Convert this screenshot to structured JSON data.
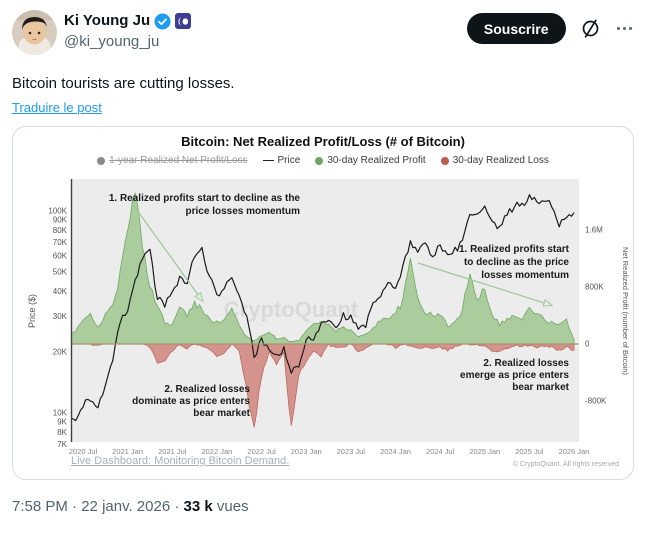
{
  "post": {
    "author": {
      "name": "Ki Young Ju",
      "handle": "@ki_young_ju"
    },
    "icons": {
      "verified": "verified-check",
      "affiliation": "cryptoquant-square-badge",
      "grok": "slashed-circle",
      "more": "ellipsis"
    },
    "subscribe_label": "Souscrire",
    "body": "Bitcoin tourists are cutting losses.",
    "translate_label": "Traduire le post",
    "meta": {
      "time": "7:58 PM",
      "date": "22 janv. 2026",
      "views_value": "33 k",
      "views_label": "vues",
      "separator": "·"
    }
  },
  "chart_data": {
    "type": "line+area",
    "title": "Bitcoin: Net Realized Profit/Loss (# of Bitcoin)",
    "watermark": "CryptoQuant",
    "footer_link": "Live Dashboard: Monitoring Bitcoin Demand.",
    "copyright": "© CryptoQuant. All rights reserved",
    "legend": [
      {
        "label": "1-year Realized Net Profit/Loss",
        "marker": "dot",
        "color": "#8a8a8a",
        "disabled": true
      },
      {
        "label": "Price",
        "marker": "line",
        "color": "#222222",
        "disabled": false
      },
      {
        "label": "30-day Realized Profit",
        "marker": "dot",
        "color": "#6fa763",
        "disabled": false
      },
      {
        "label": "30-day Realized Loss",
        "marker": "dot",
        "color": "#c05b52",
        "disabled": false
      }
    ],
    "x_start_month": "2020-05",
    "x_step_months": 1,
    "x_tick_labels": [
      "2020 Jul",
      "2021 Jan",
      "2021 Jul",
      "2022 Jan",
      "2022 Jul",
      "2023 Jan",
      "2023 Jul",
      "2024 Jan",
      "2024 Jul",
      "2025 Jan",
      "2025 Jul",
      "2026 Jan"
    ],
    "left_axis": {
      "label": "Price ($)",
      "scale": "log",
      "tick_labels": [
        "100K",
        "90K",
        "80K",
        "70K",
        "60K",
        "50K",
        "40K",
        "30K",
        "20K",
        "10K",
        "9K",
        "8K",
        "7K"
      ]
    },
    "right_axis": {
      "label": "Net Realized Profit (number of Bitcoin)",
      "scale": "linear",
      "tick_labels": [
        "1.6M",
        "800K",
        "0",
        "-800K"
      ]
    },
    "series": [
      {
        "name": "Price",
        "type": "line",
        "axis": "left",
        "color": "#1b1b1b",
        "unit": "K USD",
        "values": [
          9.4,
          9.2,
          11,
          11.6,
          10.7,
          13.5,
          18,
          28,
          33,
          46,
          58,
          63,
          37,
          34,
          40,
          47,
          43,
          61,
          64,
          47,
          38,
          42,
          45,
          39,
          30,
          19,
          23,
          20,
          19.5,
          20.5,
          16,
          16.6,
          23,
          23.5,
          28,
          29.5,
          27,
          30.5,
          29.5,
          26,
          27,
          34.5,
          37.5,
          43,
          42.5,
          52,
          71,
          64,
          68,
          61,
          66.5,
          59,
          64,
          70,
          96,
          95,
          102,
          86,
          83,
          95,
          106,
          108,
          117,
          110,
          114,
          108,
          86,
          92,
          95
        ]
      },
      {
        "name": "30-day Realized Profit",
        "type": "area",
        "axis": "right",
        "color": "#a5ca97",
        "edge_color": "#6fa763",
        "unit": "K BTC",
        "values": [
          120,
          180,
          320,
          430,
          240,
          390,
          560,
          980,
          1600,
          2180,
          1350,
          820,
          560,
          300,
          280,
          500,
          400,
          560,
          500,
          360,
          300,
          340,
          480,
          280,
          90,
          40,
          130,
          170,
          70,
          90,
          30,
          50,
          180,
          290,
          330,
          260,
          180,
          240,
          190,
          100,
          130,
          230,
          330,
          380,
          430,
          600,
          1190,
          650,
          450,
          390,
          420,
          260,
          300,
          460,
          1050,
          620,
          800,
          420,
          280,
          350,
          400,
          340,
          500,
          420,
          350,
          300,
          260,
          330,
          60
        ]
      },
      {
        "name": "30-day Realized Loss",
        "type": "area",
        "axis": "right",
        "color": "#d28b84",
        "edge_color": "#bc6a61",
        "unit": "K BTC",
        "values": [
          0,
          0,
          0,
          0,
          -20,
          0,
          0,
          0,
          0,
          0,
          0,
          -40,
          -260,
          -220,
          -90,
          0,
          -60,
          0,
          -30,
          -80,
          -160,
          -120,
          0,
          -90,
          -640,
          -1220,
          -440,
          -120,
          -280,
          -130,
          -1150,
          -420,
          -240,
          -90,
          -170,
          0,
          -60,
          -40,
          0,
          -110,
          -70,
          0,
          0,
          0,
          -50,
          0,
          -30,
          -60,
          -40,
          -70,
          -50,
          -90,
          -40,
          0,
          0,
          -20,
          -20,
          -90,
          -110,
          -60,
          -20,
          -30,
          -20,
          -50,
          -30,
          -40,
          -90,
          -40,
          -100
        ]
      }
    ],
    "annotations": [
      {
        "lines": [
          "1. Realized profits start to decline as the",
          "price losses momentum"
        ]
      },
      {
        "lines": [
          "2. Realized losses",
          "dominate as price enters",
          "bear market"
        ]
      },
      {
        "lines": [
          "1. Realized profits start",
          "to decline as the price",
          "losses momentum"
        ]
      },
      {
        "lines": [
          "2. Realized losses",
          "emerge as price enters",
          "bear market"
        ]
      }
    ],
    "baseline_value": 0
  }
}
